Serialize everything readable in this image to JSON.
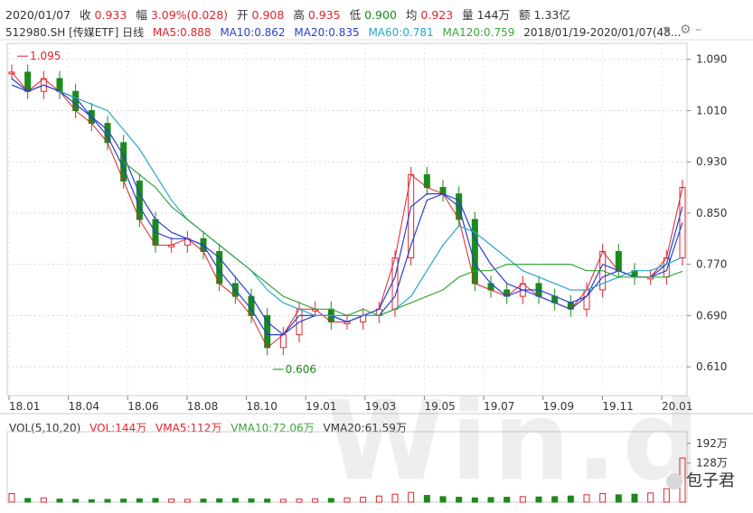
{
  "header": {
    "date": "2020/01/07",
    "close_label": "收",
    "close": "0.933",
    "change_label": "幅",
    "change": "3.09%(0.028)",
    "open_label": "开",
    "open": "0.908",
    "high_label": "高",
    "high": "0.935",
    "low_label": "低",
    "low": "0.900",
    "avg_label": "均",
    "avg": "0.923",
    "vol_label": "量",
    "vol": "144万",
    "amount_label": "额",
    "amount": "1.33亿"
  },
  "indicators": {
    "code": "512980.SH [传媒ETF] 日线",
    "ma5": "MA5:0.888",
    "ma10": "MA10:0.862",
    "ma20": "MA20:0.835",
    "ma60": "MA60:0.781",
    "ma120": "MA120:0.759",
    "range": "2018/01/19-2020/01/07(48..."
  },
  "volume_header": {
    "title": "VOL(5,10,20)",
    "vol": "VOL:144万",
    "vma5": "VMA5:112万",
    "vma10": "VMA10:72.06万",
    "vma20": "VMA20:61.59万"
  },
  "colors": {
    "up": "#e0242c",
    "down": "#1a8a1a",
    "ma5": "#e0242c",
    "ma10": "#2a3fd0",
    "ma20": "#2a3fd0",
    "ma60": "#29a6c9",
    "ma120": "#3aa53a"
  },
  "watermark": "Win.d",
  "badge": "包子君",
  "chart_data": {
    "type": "line",
    "xlabel": "",
    "ylabel": "",
    "x_ticks": [
      "18.01",
      "18.04",
      "18.06",
      "18.08",
      "18.10",
      "19.01",
      "19.03",
      "19.05",
      "19.07",
      "19.09",
      "19.11",
      "20.01"
    ],
    "y_ticks": [
      "1.090",
      "1.010",
      "0.930",
      "0.850",
      "0.770",
      "0.690",
      "0.610"
    ],
    "ylim": [
      0.565,
      1.115
    ],
    "annotations": [
      {
        "label": "1.095",
        "value": 1.095,
        "x": "18.01"
      },
      {
        "label": "0.606",
        "value": 0.606,
        "x": "18.10"
      }
    ],
    "series": [
      {
        "name": "MA5",
        "values": [
          1.07,
          1.04,
          1.06,
          1.04,
          1.01,
          0.99,
          0.96,
          0.9,
          0.84,
          0.8,
          0.8,
          0.81,
          0.79,
          0.74,
          0.72,
          0.69,
          0.64,
          0.66,
          0.7,
          0.7,
          0.68,
          0.68,
          0.69,
          0.7,
          0.78,
          0.91,
          0.89,
          0.88,
          0.84,
          0.74,
          0.73,
          0.72,
          0.74,
          0.72,
          0.71,
          0.7,
          0.73,
          0.79,
          0.76,
          0.75,
          0.75,
          0.78,
          0.89
        ]
      },
      {
        "name": "MA10",
        "values": [
          1.06,
          1.04,
          1.05,
          1.04,
          1.02,
          1.0,
          0.97,
          0.92,
          0.86,
          0.82,
          0.81,
          0.81,
          0.8,
          0.76,
          0.73,
          0.7,
          0.66,
          0.66,
          0.69,
          0.69,
          0.69,
          0.68,
          0.69,
          0.7,
          0.75,
          0.86,
          0.88,
          0.88,
          0.86,
          0.77,
          0.74,
          0.72,
          0.73,
          0.72,
          0.71,
          0.7,
          0.72,
          0.77,
          0.76,
          0.75,
          0.75,
          0.77,
          0.86
        ]
      },
      {
        "name": "MA20",
        "values": [
          1.05,
          1.04,
          1.05,
          1.04,
          1.03,
          1.0,
          0.98,
          0.94,
          0.88,
          0.84,
          0.82,
          0.81,
          0.8,
          0.78,
          0.75,
          0.72,
          0.68,
          0.66,
          0.68,
          0.69,
          0.69,
          0.68,
          0.69,
          0.69,
          0.72,
          0.8,
          0.87,
          0.88,
          0.87,
          0.81,
          0.77,
          0.74,
          0.73,
          0.73,
          0.72,
          0.71,
          0.72,
          0.75,
          0.76,
          0.75,
          0.75,
          0.76,
          0.835
        ]
      },
      {
        "name": "MA60",
        "values": [
          null,
          null,
          null,
          1.04,
          1.03,
          1.02,
          1.01,
          0.98,
          0.95,
          0.91,
          0.87,
          0.84,
          0.82,
          0.8,
          0.78,
          0.76,
          0.73,
          0.71,
          0.7,
          0.69,
          0.69,
          0.69,
          0.69,
          0.69,
          0.7,
          0.72,
          0.76,
          0.8,
          0.83,
          0.82,
          0.8,
          0.78,
          0.76,
          0.75,
          0.74,
          0.73,
          0.73,
          0.74,
          0.75,
          0.76,
          0.76,
          0.77,
          0.781
        ]
      },
      {
        "name": "MA120",
        "values": [
          null,
          null,
          null,
          null,
          null,
          null,
          null,
          0.93,
          0.91,
          0.89,
          0.86,
          0.84,
          0.82,
          0.8,
          0.78,
          0.76,
          0.74,
          0.72,
          0.71,
          0.7,
          0.7,
          0.69,
          0.7,
          0.69,
          0.7,
          0.71,
          0.72,
          0.73,
          0.75,
          0.76,
          0.76,
          0.77,
          0.77,
          0.77,
          0.77,
          0.77,
          0.76,
          0.76,
          0.75,
          0.75,
          0.75,
          0.75,
          0.759
        ]
      }
    ],
    "volume": {
      "y_ticks": [
        "192万",
        "128万"
      ],
      "ylim": [
        0,
        230
      ],
      "values": [
        28,
        12,
        14,
        10,
        9,
        8,
        9,
        10,
        11,
        12,
        10,
        9,
        10,
        11,
        12,
        11,
        10,
        9,
        10,
        11,
        12,
        14,
        16,
        20,
        26,
        32,
        22,
        18,
        16,
        14,
        15,
        16,
        18,
        17,
        18,
        20,
        24,
        28,
        24,
        26,
        30,
        44,
        144
      ]
    }
  }
}
